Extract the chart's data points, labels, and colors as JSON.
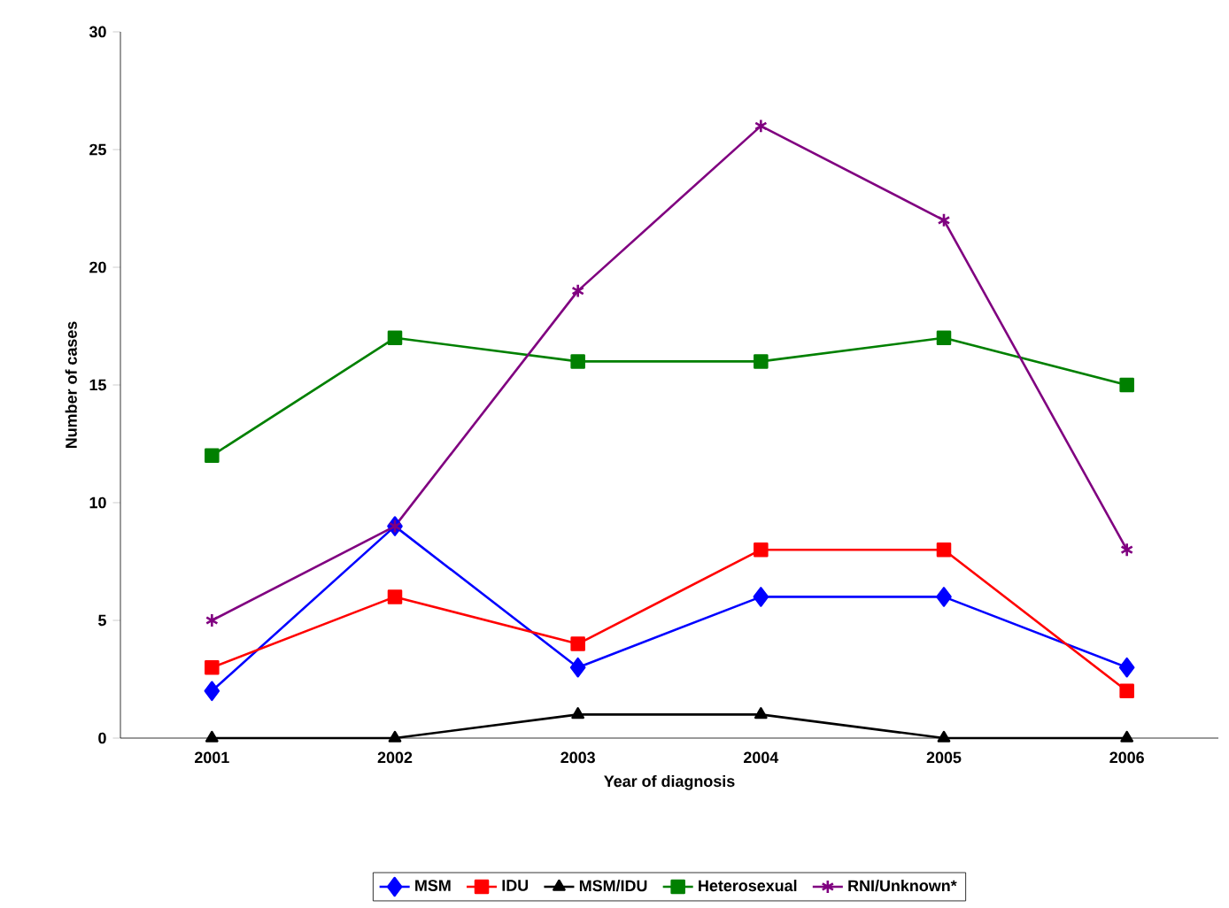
{
  "chart_data": {
    "type": "line",
    "xlabel": "Year of diagnosis",
    "ylabel": "Number of cases",
    "categories": [
      "2001",
      "2002",
      "2003",
      "2004",
      "2005",
      "2006"
    ],
    "series": [
      {
        "name": "MSM",
        "color": "#0000ff",
        "marker": "diamond",
        "values": [
          2,
          9,
          3,
          6,
          6,
          3
        ]
      },
      {
        "name": "IDU",
        "color": "#ff0000",
        "marker": "square",
        "values": [
          3,
          6,
          4,
          8,
          8,
          2
        ]
      },
      {
        "name": "MSM/IDU",
        "color": "#000000",
        "marker": "triangle",
        "values": [
          0,
          0,
          1,
          1,
          0,
          0
        ]
      },
      {
        "name": "Heterosexual",
        "color": "#008000",
        "marker": "square",
        "values": [
          12,
          17,
          16,
          16,
          17,
          15
        ]
      },
      {
        "name": "RNI/Unknown*",
        "color": "#800080",
        "marker": "cross",
        "values": [
          5,
          9,
          19,
          26,
          22,
          8
        ]
      }
    ],
    "ylim": [
      0,
      30
    ],
    "yticks": [
      0,
      5,
      10,
      15,
      20,
      25,
      30
    ],
    "grid": false,
    "legend": "bottom",
    "line_style": "solid"
  }
}
